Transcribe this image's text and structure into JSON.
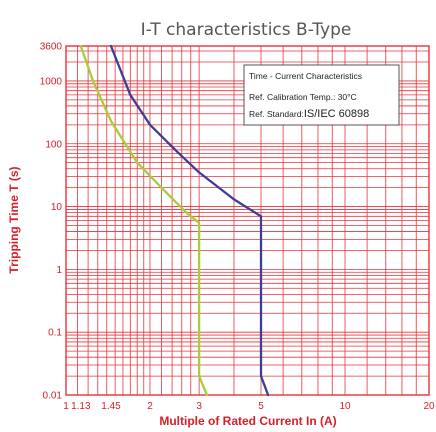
{
  "chart_data": {
    "type": "line",
    "title": "I-T characteristics B-Type",
    "xlabel": "Multiple of Rated Current In (A)",
    "ylabel": "Tripping Time T (s)",
    "x_scale": "log",
    "y_scale": "log",
    "xlim": [
      1,
      20
    ],
    "ylim": [
      0.01,
      3600
    ],
    "x_ticks": [
      {
        "value": 1,
        "label": "1"
      },
      {
        "value": 1.13,
        "label": "1.13"
      },
      {
        "value": 1.45,
        "label": "1.45"
      },
      {
        "value": 2,
        "label": "2"
      },
      {
        "value": 3,
        "label": "3"
      },
      {
        "value": 5,
        "label": "5"
      },
      {
        "value": 10,
        "label": "10"
      },
      {
        "value": 20,
        "label": "20"
      }
    ],
    "y_ticks": [
      {
        "value": 0.01,
        "label": "0.01"
      },
      {
        "value": 0.1,
        "label": "0.1"
      },
      {
        "value": 1,
        "label": "1"
      },
      {
        "value": 10,
        "label": "10"
      },
      {
        "value": 100,
        "label": "100"
      },
      {
        "value": 1000,
        "label": "1000"
      },
      {
        "value": 3600,
        "label": "3600"
      }
    ],
    "grid": true,
    "series": [
      {
        "color": "#a6ce39",
        "points": [
          [
            1.13,
            3600
          ],
          [
            1.25,
            1000
          ],
          [
            1.45,
            230
          ],
          [
            1.8,
            50
          ],
          [
            2.2,
            20
          ],
          [
            2.7,
            8
          ],
          [
            3.0,
            5.5
          ],
          [
            3.0,
            0.02
          ],
          [
            3.2,
            0.01
          ]
        ]
      },
      {
        "color": "#3a3f96",
        "points": [
          [
            1.45,
            3600
          ],
          [
            1.7,
            600
          ],
          [
            2.0,
            200
          ],
          [
            2.5,
            75
          ],
          [
            3.0,
            35
          ],
          [
            4.0,
            13
          ],
          [
            5.0,
            7
          ],
          [
            5.0,
            0.02
          ],
          [
            5.3,
            0.01
          ]
        ]
      }
    ],
    "annotation_box": {
      "line1": "Time - Current Characteristics",
      "line2": "Ref. Calibration Temp.: 30°C",
      "line3_prefix": "Ref. Standard:",
      "line3_value": "IS/IEC 60898"
    }
  }
}
